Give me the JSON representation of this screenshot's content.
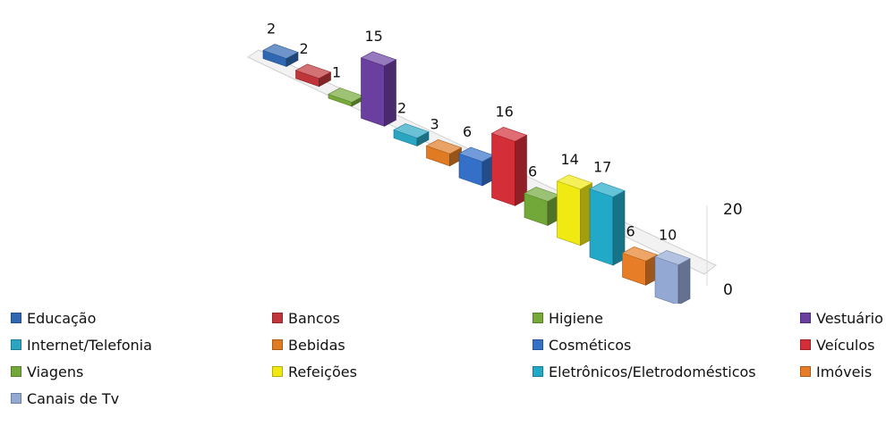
{
  "chart_data": {
    "type": "bar",
    "title": "",
    "xlabel": "",
    "ylabel": "",
    "ylim": [
      0,
      20
    ],
    "yticks": [
      0,
      20
    ],
    "grid": false,
    "legend_position": "bottom",
    "categories": [
      "Educação",
      "Bancos",
      "Higiene",
      "Vestuário",
      "Internet/Telefonia",
      "Bebidas",
      "Cosméticos",
      "Veículos",
      "Viagens",
      "Refeições",
      "Eletrônicos/Eletrodomésticos",
      "Imóveis",
      "Canais de Tv"
    ],
    "values": [
      2,
      2,
      1,
      15,
      2,
      3,
      6,
      16,
      6,
      14,
      17,
      6,
      10
    ],
    "colors": [
      "#2f67b2",
      "#c0353a",
      "#76a93a",
      "#6b3fa0",
      "#2aa5c2",
      "#e07b24",
      "#3470c8",
      "#d42f38",
      "#72a83a",
      "#f0ea12",
      "#22a9c7",
      "#e77e27",
      "#93a8d2"
    ]
  }
}
